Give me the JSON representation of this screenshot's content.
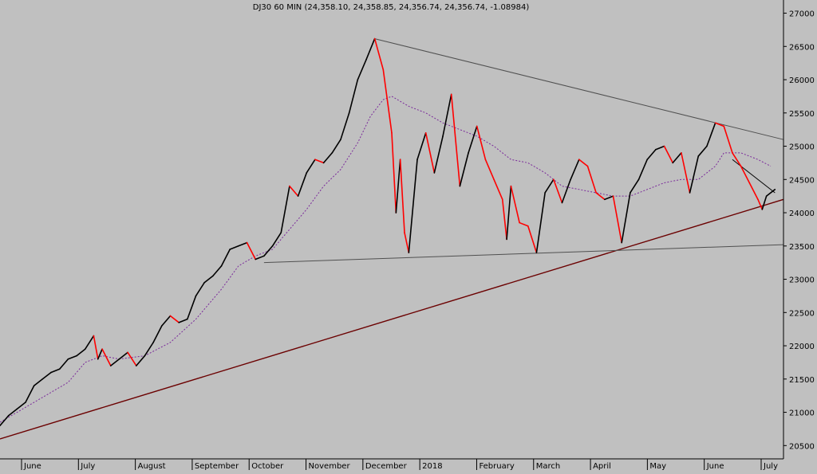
{
  "chart_data": {
    "type": "line",
    "title": "DJ30 60 MIN (24,358.10, 24,358.85, 24,356.74, 24,356.74, -1.08984)",
    "xlabel": "",
    "ylabel": "",
    "ylim": [
      20300,
      27150
    ],
    "y_ticks": [
      20500,
      21000,
      21500,
      22000,
      22500,
      23000,
      23500,
      24000,
      24500,
      25000,
      25500,
      26000,
      26500,
      27000
    ],
    "x_tick_labels": [
      "June",
      "July",
      "August",
      "September",
      "October",
      "November",
      "December",
      "2018",
      "February",
      "March",
      "April",
      "May",
      "June",
      "July"
    ],
    "price_path": [
      [
        0,
        20800
      ],
      [
        2,
        20950
      ],
      [
        4,
        21050
      ],
      [
        6,
        21150
      ],
      [
        8,
        21400
      ],
      [
        10,
        21500
      ],
      [
        12,
        21600
      ],
      [
        14,
        21650
      ],
      [
        16,
        21800
      ],
      [
        18,
        21850
      ],
      [
        20,
        21950
      ],
      [
        22,
        22150
      ],
      [
        23,
        21800
      ],
      [
        24,
        21950
      ],
      [
        26,
        21700
      ],
      [
        28,
        21800
      ],
      [
        30,
        21900
      ],
      [
        32,
        21700
      ],
      [
        34,
        21850
      ],
      [
        36,
        22050
      ],
      [
        38,
        22300
      ],
      [
        40,
        22450
      ],
      [
        42,
        22350
      ],
      [
        44,
        22400
      ],
      [
        46,
        22750
      ],
      [
        48,
        22950
      ],
      [
        50,
        23050
      ],
      [
        52,
        23200
      ],
      [
        54,
        23450
      ],
      [
        56,
        23500
      ],
      [
        58,
        23550
      ],
      [
        60,
        23300
      ],
      [
        62,
        23350
      ],
      [
        64,
        23500
      ],
      [
        66,
        23700
      ],
      [
        68,
        24400
      ],
      [
        70,
        24250
      ],
      [
        72,
        24600
      ],
      [
        74,
        24800
      ],
      [
        76,
        24750
      ],
      [
        78,
        24900
      ],
      [
        80,
        25100
      ],
      [
        82,
        25500
      ],
      [
        84,
        26000
      ],
      [
        86,
        26300
      ],
      [
        88,
        26616
      ],
      [
        90,
        26150
      ],
      [
        92,
        25200
      ],
      [
        93,
        24000
      ],
      [
        94,
        24800
      ],
      [
        95,
        23700
      ],
      [
        96,
        23400
      ],
      [
        98,
        24800
      ],
      [
        100,
        25200
      ],
      [
        102,
        24600
      ],
      [
        104,
        25150
      ],
      [
        106,
        25780
      ],
      [
        108,
        24400
      ],
      [
        110,
        24900
      ],
      [
        112,
        25300
      ],
      [
        114,
        24800
      ],
      [
        116,
        24500
      ],
      [
        118,
        24200
      ],
      [
        119,
        23600
      ],
      [
        120,
        24400
      ],
      [
        122,
        23850
      ],
      [
        124,
        23800
      ],
      [
        126,
        23400
      ],
      [
        128,
        24300
      ],
      [
        130,
        24500
      ],
      [
        132,
        24150
      ],
      [
        134,
        24500
      ],
      [
        136,
        24800
      ],
      [
        138,
        24700
      ],
      [
        140,
        24300
      ],
      [
        142,
        24200
      ],
      [
        144,
        24250
      ],
      [
        146,
        23550
      ],
      [
        148,
        24300
      ],
      [
        150,
        24500
      ],
      [
        152,
        24800
      ],
      [
        154,
        24950
      ],
      [
        156,
        25000
      ],
      [
        158,
        24750
      ],
      [
        160,
        24900
      ],
      [
        162,
        24300
      ],
      [
        164,
        24850
      ],
      [
        166,
        25000
      ],
      [
        168,
        25350
      ],
      [
        170,
        25300
      ],
      [
        172,
        24900
      ],
      [
        174,
        24700
      ],
      [
        176,
        24450
      ],
      [
        178,
        24200
      ],
      [
        179,
        24050
      ],
      [
        180,
        24250
      ],
      [
        182,
        24350
      ]
    ],
    "moving_average": [
      [
        0,
        20850
      ],
      [
        8,
        21150
      ],
      [
        16,
        21450
      ],
      [
        20,
        21750
      ],
      [
        24,
        21850
      ],
      [
        28,
        21800
      ],
      [
        34,
        21850
      ],
      [
        40,
        22050
      ],
      [
        46,
        22400
      ],
      [
        52,
        22850
      ],
      [
        56,
        23200
      ],
      [
        60,
        23350
      ],
      [
        64,
        23450
      ],
      [
        68,
        23750
      ],
      [
        72,
        24050
      ],
      [
        76,
        24400
      ],
      [
        80,
        24650
      ],
      [
        84,
        25050
      ],
      [
        87,
        25450
      ],
      [
        90,
        25700
      ],
      [
        92,
        25750
      ],
      [
        96,
        25600
      ],
      [
        100,
        25500
      ],
      [
        104,
        25350
      ],
      [
        108,
        25250
      ],
      [
        112,
        25150
      ],
      [
        116,
        25000
      ],
      [
        120,
        24800
      ],
      [
        124,
        24750
      ],
      [
        128,
        24600
      ],
      [
        132,
        24400
      ],
      [
        136,
        24350
      ],
      [
        140,
        24300
      ],
      [
        144,
        24250
      ],
      [
        148,
        24250
      ],
      [
        152,
        24350
      ],
      [
        156,
        24450
      ],
      [
        160,
        24500
      ],
      [
        164,
        24500
      ],
      [
        168,
        24700
      ],
      [
        170,
        24900
      ],
      [
        174,
        24900
      ],
      [
        178,
        24800
      ],
      [
        181,
        24700
      ]
    ],
    "trendlines": [
      {
        "from": [
          0,
          20600
        ],
        "to": [
          184,
          24200
        ],
        "color": "#6b0000"
      },
      {
        "from": [
          88,
          26616
        ],
        "to": [
          184,
          25100
        ],
        "color": "#505050"
      },
      {
        "from": [
          62,
          23250
        ],
        "to": [
          184,
          23520
        ],
        "color": "#505050"
      },
      {
        "from": [
          172,
          24800
        ],
        "to": [
          182,
          24300
        ],
        "color": "#000000"
      }
    ],
    "colors": {
      "background": "#c0c0c0",
      "up": "#000000",
      "down": "#ff0000",
      "moving_average": "#7a2a9a"
    },
    "grid": false,
    "legend": "none"
  }
}
